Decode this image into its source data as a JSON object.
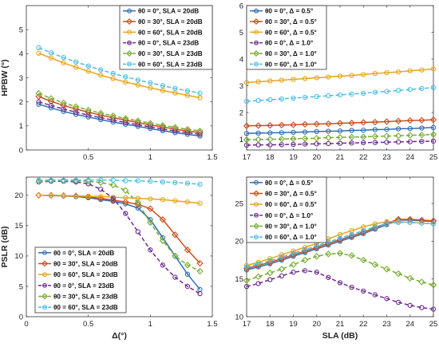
{
  "series_styles": [
    {
      "color": "#2e6db4",
      "marker": "circle",
      "dash": false
    },
    {
      "color": "#cc4d1c",
      "marker": "diamond",
      "dash": false
    },
    {
      "color": "#e8a619",
      "marker": "circle",
      "dash": false
    },
    {
      "color": "#6e2d8e",
      "marker": "circle",
      "dash": true
    },
    {
      "color": "#77ad30",
      "marker": "diamond",
      "dash": true
    },
    {
      "color": "#4ebde7",
      "marker": "circle",
      "dash": true
    }
  ],
  "chart_data": [
    {
      "type": "line",
      "xlabel": "",
      "ylabel": "HPBW (°)",
      "xlim": [
        0,
        1.5
      ],
      "ylim": [
        0,
        6
      ],
      "xticks": [
        "0.5",
        "1",
        "1.5"
      ],
      "xtick_values": [
        0.5,
        1,
        1.5
      ],
      "yticks": [
        "0",
        "1",
        "2",
        "3",
        "4",
        "5"
      ],
      "ytick_values": [
        0,
        1,
        2,
        3,
        4,
        5
      ],
      "legend_position": "top-right",
      "x": [
        0.1,
        0.2,
        0.3,
        0.4,
        0.5,
        0.6,
        0.7,
        0.8,
        0.9,
        1.0,
        1.1,
        1.2,
        1.3,
        1.4
      ],
      "series": [
        {
          "name": "θ0 = 0°, SLA = 20dB",
          "values": [
            1.9,
            1.75,
            1.6,
            1.48,
            1.37,
            1.26,
            1.16,
            1.07,
            0.98,
            0.89,
            0.8,
            0.72,
            0.65,
            0.58
          ]
        },
        {
          "name": "θ0 = 30°, SLA = 20dB",
          "values": [
            2.22,
            2.02,
            1.85,
            1.7,
            1.57,
            1.45,
            1.34,
            1.24,
            1.14,
            1.04,
            0.95,
            0.87,
            0.79,
            0.72
          ]
        },
        {
          "name": "θ0 = 60°, SLA = 20dB",
          "values": [
            4.02,
            3.82,
            3.62,
            3.44,
            3.27,
            3.11,
            2.96,
            2.82,
            2.7,
            2.58,
            2.47,
            2.37,
            2.27,
            2.17
          ]
        },
        {
          "name": "θ0 = 0°, SLA = 23dB",
          "values": [
            2.0,
            1.85,
            1.7,
            1.57,
            1.45,
            1.34,
            1.24,
            1.14,
            1.05,
            0.96,
            0.87,
            0.79,
            0.72,
            0.65
          ]
        },
        {
          "name": "θ0 = 30°, SLA = 23dB",
          "values": [
            2.35,
            2.14,
            1.96,
            1.8,
            1.66,
            1.53,
            1.42,
            1.31,
            1.21,
            1.11,
            1.02,
            0.94,
            0.86,
            0.79
          ]
        },
        {
          "name": "θ0 = 60°, SLA = 23dB",
          "values": [
            4.25,
            4.04,
            3.84,
            3.66,
            3.49,
            3.33,
            3.18,
            3.04,
            2.91,
            2.79,
            2.67,
            2.56,
            2.46,
            2.36
          ]
        }
      ]
    },
    {
      "type": "line",
      "xlabel": "",
      "ylabel": "",
      "xlim": [
        17,
        25
      ],
      "ylim": [
        0.6,
        6
      ],
      "xticks": [
        "17",
        "18",
        "19",
        "20",
        "21",
        "22",
        "23",
        "24",
        "25"
      ],
      "xtick_values": [
        17,
        18,
        19,
        20,
        21,
        22,
        23,
        24,
        25
      ],
      "yticks": [
        "1",
        "2",
        "3",
        "4",
        "5",
        "6"
      ],
      "ytick_values": [
        1,
        2,
        3,
        4,
        5,
        6
      ],
      "legend_position": "top-left",
      "x": [
        17,
        17.5,
        18,
        18.5,
        19,
        19.5,
        20,
        20.5,
        21,
        21.5,
        22,
        22.5,
        23,
        23.5,
        24,
        24.5,
        25
      ],
      "series": [
        {
          "name": "θ0 = 0°, Δ = 0.5°",
          "values": [
            1.22,
            1.23,
            1.24,
            1.25,
            1.26,
            1.27,
            1.29,
            1.3,
            1.31,
            1.33,
            1.34,
            1.36,
            1.37,
            1.39,
            1.4,
            1.42,
            1.44
          ]
        },
        {
          "name": "θ0 = 30°, Δ = 0.5°",
          "values": [
            1.5,
            1.51,
            1.52,
            1.53,
            1.54,
            1.56,
            1.57,
            1.58,
            1.6,
            1.61,
            1.63,
            1.64,
            1.66,
            1.68,
            1.7,
            1.71,
            1.73
          ]
        },
        {
          "name": "θ0 = 60°, Δ = 0.5°",
          "values": [
            3.12,
            3.15,
            3.18,
            3.21,
            3.24,
            3.27,
            3.3,
            3.33,
            3.36,
            3.39,
            3.42,
            3.46,
            3.49,
            3.52,
            3.56,
            3.59,
            3.63
          ]
        },
        {
          "name": "θ0 = 0°, Δ = 1.0°",
          "values": [
            0.78,
            0.79,
            0.79,
            0.8,
            0.81,
            0.82,
            0.83,
            0.84,
            0.85,
            0.86,
            0.87,
            0.88,
            0.89,
            0.9,
            0.91,
            0.92,
            0.93
          ]
        },
        {
          "name": "θ0 = 30°, Δ = 1.0°",
          "values": [
            0.98,
            0.99,
            1.0,
            1.01,
            1.02,
            1.03,
            1.04,
            1.06,
            1.07,
            1.08,
            1.09,
            1.11,
            1.12,
            1.13,
            1.15,
            1.16,
            1.18
          ]
        },
        {
          "name": "θ0 = 60°, Δ = 1.0°",
          "values": [
            2.42,
            2.45,
            2.48,
            2.51,
            2.54,
            2.57,
            2.6,
            2.63,
            2.66,
            2.69,
            2.72,
            2.76,
            2.79,
            2.83,
            2.86,
            2.9,
            2.93
          ]
        }
      ]
    },
    {
      "type": "line",
      "xlabel": "Δ(°)",
      "ylabel": "PSLR (dB)",
      "xlim": [
        0,
        1.5
      ],
      "ylim": [
        0,
        23
      ],
      "xticks": [
        "0",
        "0.5",
        "1",
        "1.5"
      ],
      "xtick_values": [
        0,
        0.5,
        1,
        1.5
      ],
      "yticks": [
        "0",
        "5",
        "10",
        "15",
        "20"
      ],
      "ytick_values": [
        0,
        5,
        10,
        15,
        20
      ],
      "legend_position": "bottom-left",
      "x": [
        0.1,
        0.2,
        0.3,
        0.4,
        0.5,
        0.6,
        0.7,
        0.8,
        0.9,
        1.0,
        1.1,
        1.2,
        1.3,
        1.4
      ],
      "series": [
        {
          "name": "θ0 = 0°, SLA = 20dB",
          "values": [
            20.0,
            19.95,
            19.9,
            19.8,
            19.6,
            19.3,
            19.0,
            18.6,
            17.9,
            16.0,
            13.0,
            10.0,
            7.0,
            4.5
          ]
        },
        {
          "name": "θ0 = 30°, SLA = 20dB",
          "values": [
            20.0,
            20.0,
            19.95,
            19.9,
            19.75,
            19.5,
            19.2,
            18.9,
            18.5,
            17.8,
            16.0,
            13.5,
            11.0,
            8.8
          ]
        },
        {
          "name": "θ0 = 60°, SLA = 20dB",
          "values": [
            20.0,
            20.0,
            19.95,
            19.9,
            19.85,
            19.8,
            19.7,
            19.6,
            19.5,
            19.4,
            19.3,
            19.1,
            18.9,
            18.7
          ]
        },
        {
          "name": "θ0 = 0°, SLA = 23dB",
          "values": [
            22.2,
            22.3,
            22.3,
            22.2,
            21.9,
            21.0,
            19.5,
            17.0,
            14.0,
            11.0,
            8.5,
            6.5,
            5.0,
            3.8
          ]
        },
        {
          "name": "θ0 = 30°, SLA = 23dB",
          "values": [
            22.3,
            22.4,
            22.4,
            22.4,
            22.3,
            22.1,
            21.7,
            20.8,
            18.8,
            15.5,
            12.5,
            10.0,
            8.5,
            7.5
          ]
        },
        {
          "name": "θ0 = 60°, SLA = 23dB",
          "values": [
            22.5,
            22.5,
            22.5,
            22.5,
            22.5,
            22.5,
            22.5,
            22.4,
            22.4,
            22.3,
            22.2,
            22.1,
            22.0,
            21.8
          ]
        }
      ]
    },
    {
      "type": "line",
      "xlabel": "SLA (dB)",
      "ylabel": "",
      "xlim": [
        17,
        25
      ],
      "ylim": [
        10,
        28.5
      ],
      "xticks": [
        "17",
        "18",
        "19",
        "20",
        "21",
        "22",
        "23",
        "24",
        "25"
      ],
      "xtick_values": [
        17,
        18,
        19,
        20,
        21,
        22,
        23,
        24,
        25
      ],
      "yticks": [
        "10",
        "15",
        "20",
        "25"
      ],
      "ytick_values": [
        10,
        15,
        20,
        25
      ],
      "legend_position": "top-left",
      "x": [
        17,
        17.5,
        18,
        18.5,
        19,
        19.5,
        20,
        20.5,
        21,
        21.5,
        22,
        22.5,
        23,
        23.5,
        24,
        24.5,
        25
      ],
      "series": [
        {
          "name": "θ0 = 0°, Δ = 0.5°",
          "values": [
            16.2,
            16.6,
            17.0,
            17.5,
            18.0,
            18.5,
            19.0,
            19.5,
            20.0,
            20.5,
            21.0,
            21.6,
            22.2,
            22.8,
            22.8,
            22.7,
            22.6
          ]
        },
        {
          "name": "θ0 = 30°, Δ = 0.5°",
          "values": [
            16.4,
            16.8,
            17.2,
            17.7,
            18.2,
            18.7,
            19.2,
            19.7,
            20.2,
            20.7,
            21.2,
            21.8,
            22.4,
            22.9,
            22.9,
            22.8,
            22.7
          ]
        },
        {
          "name": "θ0 = 60°, Δ = 0.5°",
          "values": [
            16.8,
            17.2,
            17.7,
            18.2,
            18.7,
            19.2,
            19.7,
            20.3,
            20.9,
            21.4,
            21.9,
            22.3,
            22.6,
            22.6,
            22.5,
            22.4,
            22.3
          ]
        },
        {
          "name": "θ0 = 0°, Δ = 1.0°",
          "values": [
            14.0,
            14.4,
            14.9,
            15.4,
            15.9,
            16.1,
            15.9,
            15.2,
            14.5,
            13.9,
            13.4,
            12.9,
            12.4,
            11.9,
            11.5,
            11.2,
            11.0
          ]
        },
        {
          "name": "θ0 = 30°, Δ = 1.0°",
          "values": [
            14.8,
            15.3,
            15.8,
            16.3,
            16.9,
            17.5,
            18.0,
            18.3,
            18.4,
            18.1,
            17.5,
            16.9,
            16.3,
            15.7,
            15.1,
            14.6,
            14.2
          ]
        },
        {
          "name": "θ0 = 60°, Δ = 1.0°",
          "values": [
            16.6,
            17.0,
            17.4,
            17.9,
            18.4,
            18.9,
            19.4,
            19.9,
            20.4,
            20.9,
            21.4,
            21.9,
            22.3,
            22.5,
            22.5,
            22.4,
            22.3
          ]
        }
      ]
    }
  ]
}
